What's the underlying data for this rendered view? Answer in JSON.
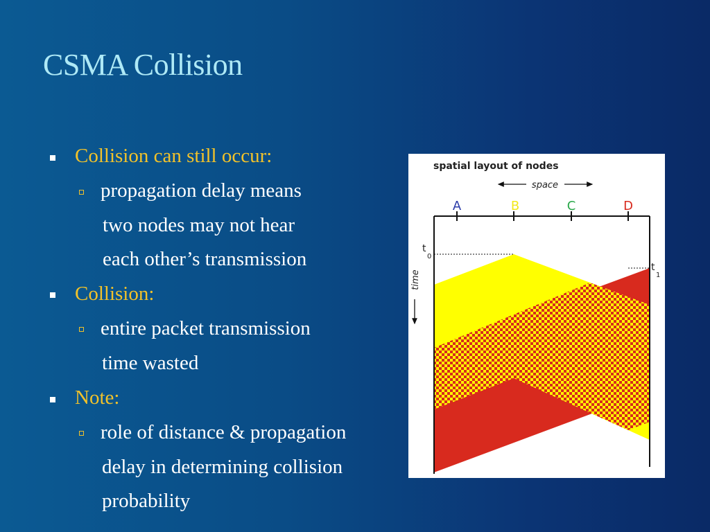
{
  "slide": {
    "title": "CSMA Collision",
    "bullets": [
      {
        "text": "Collision can still occur:"
      },
      {
        "sub_lines": [
          "propagation delay means",
          "two nodes may not hear",
          "each other’s transmission"
        ]
      },
      {
        "text": "Collision:"
      },
      {
        "sub_lines": [
          "entire packet transmission",
          "time wasted"
        ]
      },
      {
        "text": "Note:"
      },
      {
        "sub_lines": [
          "role of distance & propagation",
          "delay in determining collision",
          "probability"
        ]
      }
    ]
  },
  "figure": {
    "heading": "spatial layout of nodes",
    "space_label": "space",
    "time_label": "time",
    "nodes": [
      {
        "label": "A",
        "color": "#2a3aa8"
      },
      {
        "label": "B",
        "color": "#f2e81a"
      },
      {
        "label": "C",
        "color": "#2aa84a"
      },
      {
        "label": "D",
        "color": "#d82a1e"
      }
    ],
    "t0_label": "t",
    "t0_sub": "0",
    "t1_label": "t",
    "t1_sub": "1",
    "colors": {
      "yellow": "#ffff00",
      "red": "#d82a1e"
    }
  }
}
